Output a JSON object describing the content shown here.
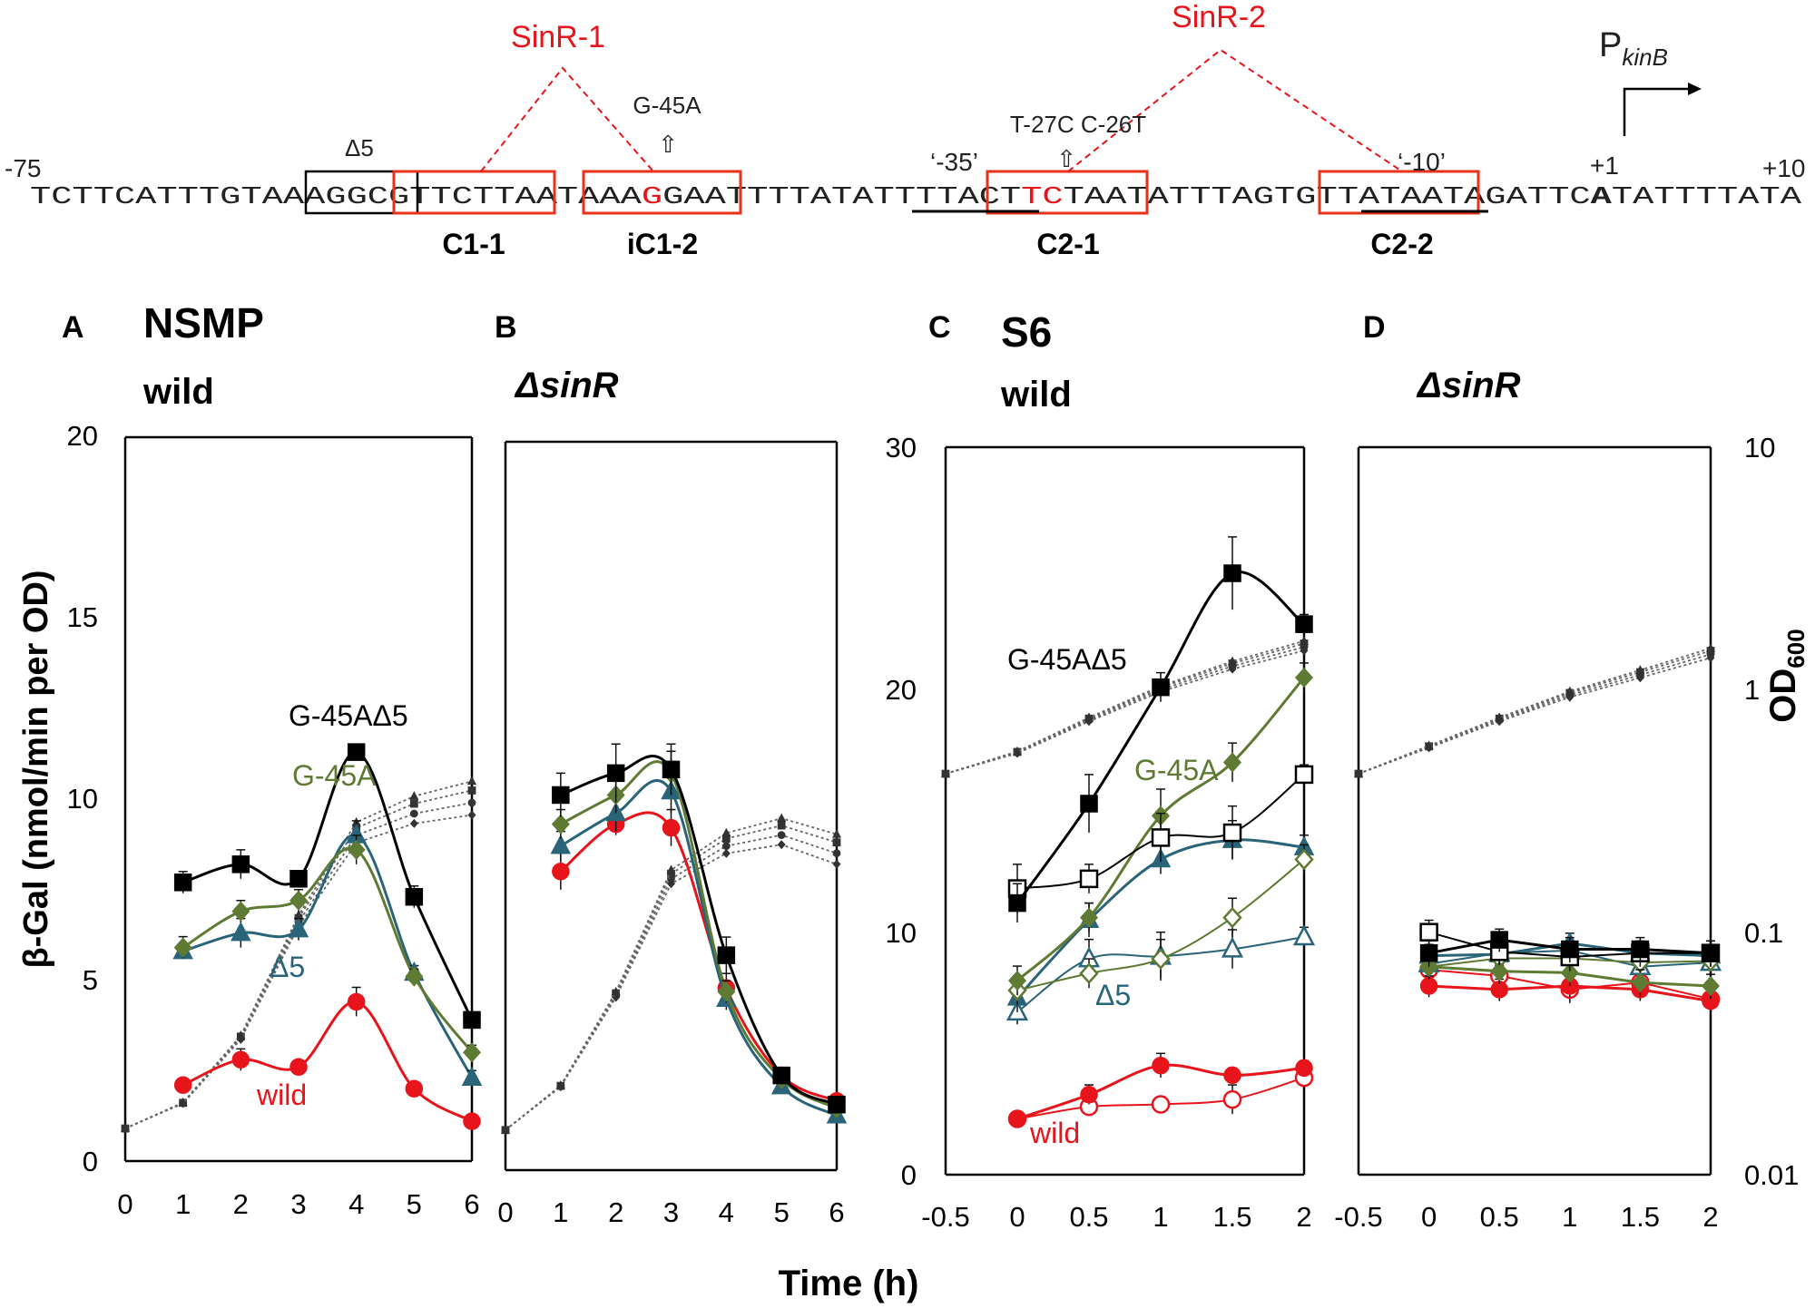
{
  "sequence": {
    "start_label": "-75",
    "end_label": "+10",
    "plus1_label": "+1",
    "delta5_label": "Δ5",
    "sinr1_label": "SinR-1",
    "sinr2_label": "SinR-2",
    "mut1_label": "G-45A",
    "mut2_label": "T-27C C-26T",
    "box35_label": "‘-35’",
    "box10_label": "‘-10’",
    "promoter_P": "P",
    "promoter_sub": "kinB",
    "site_c11": "C1-1",
    "site_ic12": "iC1-2",
    "site_c21": "C2-1",
    "site_c22": "C2-2",
    "mutation_arrow": "⇧",
    "seq_parts": {
      "p1": "TCTTCATTTGTAA",
      "p2": "AGGC",
      "p3": "G",
      "p4": "TTCTTAA",
      "p5": "T",
      "p6": "AAA",
      "p7": "G",
      "p8": "GAA",
      "p9": "TTTTATAT",
      "p10": "TTTA",
      "p11": "CT",
      "p12": "TC",
      "p13": "TAA",
      "p14": "TATTTAGT",
      "p15": "GT",
      "p16": "TATAAT",
      "p17": "AGATTC",
      "p18": "A",
      "p19": "TATTTTATA"
    }
  },
  "panels": {
    "A": {
      "letter": "A",
      "title1": "NSMP",
      "title2": "wild"
    },
    "B": {
      "letter": "B",
      "title": "ΔsinR"
    },
    "C": {
      "letter": "C",
      "title1": "S6",
      "title2": "wild"
    },
    "D": {
      "letter": "D",
      "title": "ΔsinR"
    }
  },
  "axes": {
    "y_left_label": "β-Gal (nmol/min per OD)",
    "y_right_label_main": "OD",
    "y_right_label_sub": "600",
    "x_label": "Time (h)",
    "y_left_ticks_AB": [
      "0",
      "5",
      "10",
      "15",
      "20"
    ],
    "y_left_ticks_C": [
      "0",
      "10",
      "20",
      "30"
    ],
    "y_right_ticks": [
      "0.01",
      "0.1",
      "1",
      "10"
    ],
    "x_ticks_AB": [
      "0",
      "1",
      "2",
      "3",
      "4",
      "5",
      "6"
    ],
    "x_ticks_CD": [
      "-0.5",
      "0",
      "0.5",
      "1",
      "1.5",
      "2"
    ]
  },
  "colors": {
    "black": "#000000",
    "green": "#5e7a33",
    "teal": "#2a6478",
    "red": "#e8141b",
    "box_red": "#e8321a",
    "od_gray": "#666666"
  },
  "chart_data": [
    {
      "panel": "A",
      "type": "line",
      "title": "NSMP wild",
      "xlabel": "Time (h)",
      "ylabel": "β-Gal (nmol/min per OD)",
      "xlim": [
        0,
        6
      ],
      "ylim": [
        0,
        20
      ],
      "series": [
        {
          "name": "G-45AΔ5",
          "color": "#000000",
          "marker": "square",
          "x": [
            1,
            2,
            3,
            4,
            5,
            6
          ],
          "y": [
            7.7,
            8.2,
            7.8,
            11.3,
            7.3,
            3.9
          ],
          "err": [
            0.3,
            0.4,
            0.2,
            0.2,
            0.3,
            0.2
          ]
        },
        {
          "name": "G-45A",
          "color": "#5e7a33",
          "marker": "diamond",
          "x": [
            1,
            2,
            3,
            4,
            5,
            6
          ],
          "y": [
            5.9,
            6.9,
            7.2,
            8.6,
            5.1,
            3.0
          ],
          "err": [
            0.3,
            0.3,
            0.3,
            0.4,
            0.2,
            0.2
          ]
        },
        {
          "name": "Δ5",
          "color": "#2a6478",
          "marker": "triangle",
          "x": [
            1,
            2,
            3,
            4,
            5,
            6
          ],
          "y": [
            5.8,
            6.3,
            6.4,
            9.0,
            5.2,
            2.3
          ],
          "err": [
            0.2,
            0.4,
            0.3,
            0.4,
            0.2,
            0.2
          ]
        },
        {
          "name": "wild",
          "color": "#e8141b",
          "marker": "circle",
          "x": [
            1,
            2,
            3,
            4,
            5,
            6
          ],
          "y": [
            2.1,
            2.8,
            2.6,
            4.4,
            2.0,
            1.1
          ],
          "err": [
            0.1,
            0.3,
            0.1,
            0.4,
            0.1,
            0.1
          ]
        }
      ],
      "od_series": {
        "x": [
          0,
          1,
          2,
          3,
          4,
          5,
          6
        ],
        "y": [
          0.9,
          1.6,
          3.4,
          6.6,
          9.0,
          9.6,
          9.9
        ]
      }
    },
    {
      "panel": "B",
      "type": "line",
      "title": "ΔsinR",
      "xlabel": "Time (h)",
      "ylabel": "β-Gal (nmol/min per OD)",
      "xlim": [
        0,
        6
      ],
      "ylim": [
        0,
        20
      ],
      "series": [
        {
          "name": "G-45AΔ5",
          "color": "#000000",
          "marker": "square",
          "x": [
            1,
            2,
            3,
            4,
            5,
            6
          ],
          "y": [
            10.3,
            10.9,
            11.0,
            5.9,
            2.6,
            1.8
          ],
          "err": [
            0.6,
            0.8,
            0.7,
            0.5,
            0.2,
            0.1
          ]
        },
        {
          "name": "G-45A",
          "color": "#5e7a33",
          "marker": "diamond",
          "x": [
            1,
            2,
            3,
            4,
            5,
            6
          ],
          "y": [
            9.5,
            10.3,
            10.9,
            4.9,
            2.5,
            1.7
          ],
          "err": [
            0.4,
            0.5,
            0.6,
            0.3,
            0.2,
            0.1
          ]
        },
        {
          "name": "Δ5",
          "color": "#2a6478",
          "marker": "triangle",
          "x": [
            1,
            2,
            3,
            4,
            5,
            6
          ],
          "y": [
            8.9,
            9.8,
            10.4,
            4.7,
            2.3,
            1.5
          ],
          "err": [
            0.4,
            0.5,
            0.6,
            0.3,
            0.2,
            0.1
          ]
        },
        {
          "name": "wild",
          "color": "#e8141b",
          "marker": "circle",
          "x": [
            1,
            2,
            3,
            4,
            5,
            6
          ],
          "y": [
            8.2,
            9.5,
            9.4,
            5.0,
            2.6,
            1.9
          ],
          "err": [
            0.5,
            0.3,
            0.5,
            0.4,
            0.2,
            0.1
          ]
        }
      ],
      "od_series": {
        "x": [
          0,
          1,
          2,
          3,
          4,
          5,
          6
        ],
        "y": [
          1.1,
          2.3,
          4.8,
          8.0,
          8.9,
          9.2,
          8.7
        ]
      }
    },
    {
      "panel": "C",
      "type": "line",
      "title": "S6 wild",
      "xlabel": "Time (h)",
      "ylabel": "β-Gal (nmol/min per OD)",
      "xlim": [
        -0.5,
        2
      ],
      "ylim": [
        0,
        30
      ],
      "series": [
        {
          "name": "G-45AΔ5",
          "color": "#000000",
          "marker": "square",
          "x": [
            0,
            0.5,
            1,
            1.5,
            2
          ],
          "y": [
            11.2,
            15.3,
            20.1,
            24.8,
            22.7
          ],
          "err": [
            0.8,
            1.2,
            0.6,
            1.5,
            0.4
          ]
        },
        {
          "name": "G-45AΔ5 (open)",
          "color": "#000000",
          "marker": "square-open",
          "x": [
            0,
            0.5,
            1,
            1.5,
            2
          ],
          "y": [
            11.8,
            12.2,
            13.9,
            14.1,
            16.5
          ],
          "err": [
            1.0,
            0.6,
            1.0,
            1.1,
            0.4
          ]
        },
        {
          "name": "G-45A",
          "color": "#5e7a33",
          "marker": "diamond",
          "x": [
            0,
            0.5,
            1,
            1.5,
            2
          ],
          "y": [
            8.0,
            10.6,
            14.8,
            17.0,
            20.5
          ],
          "err": [
            0.6,
            0.6,
            1.1,
            0.8,
            0.6
          ]
        },
        {
          "name": "G-45A (open)",
          "color": "#5e7a33",
          "marker": "diamond-open",
          "x": [
            0,
            0.5,
            1,
            1.5,
            2
          ],
          "y": [
            7.6,
            8.3,
            8.9,
            10.6,
            13.0
          ],
          "err": [
            0.6,
            0.6,
            0.8,
            0.8,
            0.6
          ]
        },
        {
          "name": "Δ5",
          "color": "#2a6478",
          "marker": "triangle",
          "x": [
            0,
            0.5,
            1,
            1.5,
            2
          ],
          "y": [
            7.3,
            10.5,
            13.0,
            13.8,
            13.5
          ],
          "err": [
            0.6,
            0.7,
            0.6,
            0.8,
            0.5
          ]
        },
        {
          "name": "Δ5 (open)",
          "color": "#2a6478",
          "marker": "triangle-open",
          "x": [
            0,
            0.5,
            1,
            1.5,
            2
          ],
          "y": [
            6.7,
            8.9,
            9.0,
            9.3,
            9.8
          ],
          "err": [
            0.5,
            0.8,
            1.0,
            0.8,
            0.4
          ]
        },
        {
          "name": "wild",
          "color": "#e8141b",
          "marker": "circle",
          "x": [
            0,
            0.5,
            1,
            1.5,
            2
          ],
          "y": [
            2.3,
            3.3,
            4.5,
            4.1,
            4.4
          ],
          "err": [
            0.2,
            0.4,
            0.5,
            0.3,
            0.3
          ]
        },
        {
          "name": "wild (open)",
          "color": "#e8141b",
          "marker": "circle-open",
          "x": [
            0,
            0.5,
            1,
            1.5,
            2
          ],
          "y": [
            2.3,
            2.8,
            2.9,
            3.1,
            4.0
          ],
          "err": [
            0.2,
            0.3,
            0.2,
            0.6,
            0.3
          ]
        }
      ],
      "od_series": {
        "x": [
          -0.5,
          0,
          0.5,
          1,
          1.5,
          2
        ],
        "y": [
          0.45,
          0.55,
          0.75,
          1.0,
          1.25,
          1.5
        ]
      }
    },
    {
      "panel": "D",
      "type": "line",
      "title": "ΔsinR",
      "xlabel": "Time (h)",
      "ylabel": "OD600",
      "xlim": [
        -0.5,
        2
      ],
      "ylim": [
        0.01,
        10
      ],
      "yscale": "log",
      "series": [
        {
          "name": "G-45AΔ5",
          "color": "#000000",
          "marker": "square",
          "x": [
            0,
            0.5,
            1,
            1.5,
            2
          ],
          "y": [
            0.082,
            0.093,
            0.085,
            0.085,
            0.082
          ],
          "err": [
            0.01,
            0.01,
            0.01,
            0.01,
            0.01
          ]
        },
        {
          "name": "G-45AΔ5 (open)",
          "color": "#000000",
          "marker": "square-open",
          "x": [
            0,
            0.5,
            1,
            1.5,
            2
          ],
          "y": [
            0.1,
            0.083,
            0.079,
            0.082,
            0.082
          ],
          "err": [
            0.012,
            0.01,
            0.01,
            0.01,
            0.01
          ]
        },
        {
          "name": "G-45A",
          "color": "#5e7a33",
          "marker": "diamond",
          "x": [
            0,
            0.5,
            1,
            1.5,
            2
          ],
          "y": [
            0.072,
            0.069,
            0.068,
            0.062,
            0.06
          ],
          "err": [
            0.008,
            0.008,
            0.008,
            0.008,
            0.007
          ]
        },
        {
          "name": "G-45A (open)",
          "color": "#5e7a33",
          "marker": "diamond-open",
          "x": [
            0,
            0.5,
            1,
            1.5,
            2
          ],
          "y": [
            0.072,
            0.078,
            0.078,
            0.075,
            0.076
          ],
          "err": [
            0.008,
            0.008,
            0.008,
            0.008,
            0.008
          ]
        },
        {
          "name": "Δ5",
          "color": "#2a6478",
          "marker": "triangle",
          "x": [
            0,
            0.5,
            1,
            1.5,
            2
          ],
          "y": [
            0.08,
            0.081,
            0.09,
            0.082,
            0.08
          ],
          "err": [
            0.009,
            0.009,
            0.009,
            0.009,
            0.009
          ]
        },
        {
          "name": "Δ5 (open)",
          "color": "#2a6478",
          "marker": "triangle-open",
          "x": [
            0,
            0.5,
            1,
            1.5,
            2
          ],
          "y": [
            0.074,
            0.082,
            0.084,
            0.072,
            0.075
          ],
          "err": [
            0.008,
            0.008,
            0.008,
            0.008,
            0.008
          ]
        },
        {
          "name": "wild",
          "color": "#e8141b",
          "marker": "circle",
          "x": [
            0,
            0.5,
            1,
            1.5,
            2
          ],
          "y": [
            0.06,
            0.058,
            0.06,
            0.058,
            0.052
          ],
          "err": [
            0.006,
            0.006,
            0.006,
            0.006,
            0.006
          ]
        },
        {
          "name": "wild (open)",
          "color": "#e8141b",
          "marker": "circle-open",
          "x": [
            0,
            0.5,
            1,
            1.5,
            2
          ],
          "y": [
            0.07,
            0.066,
            0.058,
            0.062,
            0.053
          ],
          "err": [
            0.007,
            0.007,
            0.007,
            0.007,
            0.006
          ]
        }
      ],
      "od_series": {
        "x": [
          -0.5,
          0,
          0.5,
          1,
          1.5,
          2
        ],
        "y": [
          0.45,
          0.58,
          0.75,
          0.95,
          1.15,
          1.4
        ]
      }
    }
  ]
}
